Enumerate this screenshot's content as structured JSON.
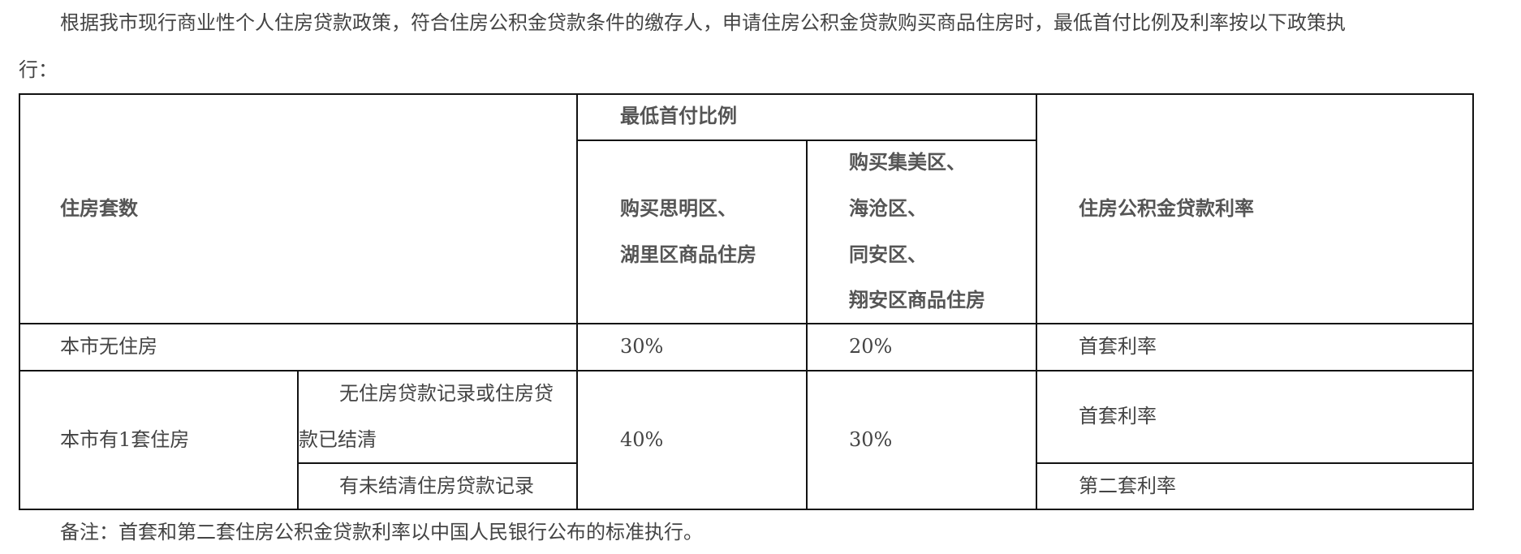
{
  "intro": {
    "line1": "根据我市现行商业性个人住房贷款政策，符合住房公积金贷款条件的缴存人，申请住房公积金贷款购买商品住房时，最低首付比例及利率按以下政策执",
    "line2": "行："
  },
  "table": {
    "headers": {
      "housing_count": "住房套数",
      "min_down_payment": "最低首付比例",
      "siming_huli": [
        "购买思明区、",
        "湖里区商品住房"
      ],
      "other_districts": [
        "购买集美区、",
        "海沧区、",
        "同安区、",
        "翔安区商品住房"
      ],
      "rate": "住房公积金贷款利率"
    },
    "rows": [
      {
        "housing": "本市无住房",
        "siming_huli": "30%",
        "other": "20%",
        "rate": "首套利率"
      },
      {
        "housing": "本市有1套住房",
        "sub": [
          {
            "condition": [
              "无住房贷款记录或住房贷",
              "款已结清"
            ],
            "rate": "首套利率"
          },
          {
            "condition": [
              "有未结清住房贷款记录"
            ],
            "rate": "第二套利率"
          }
        ],
        "siming_huli": "40%",
        "other": "30%"
      }
    ]
  },
  "note": "备注：首套和第二套住房公积金贷款利率以中国人民银行公布的标准执行。"
}
